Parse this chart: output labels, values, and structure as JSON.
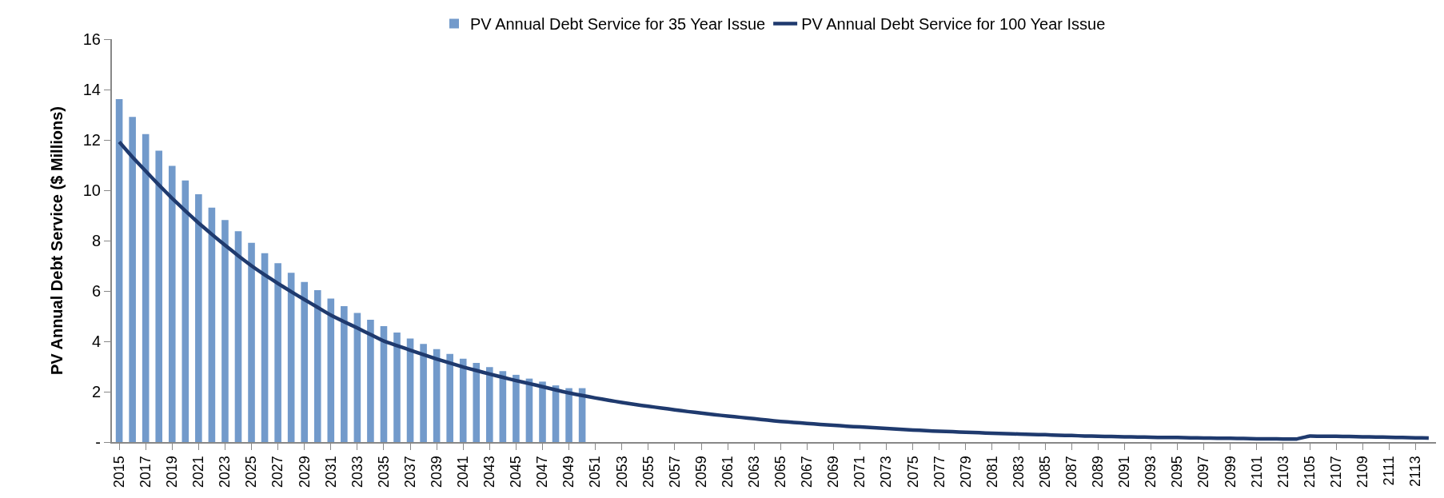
{
  "chart_data": {
    "type": "bar",
    "ylabel": "PV Annual Debt Service ($ Millions)",
    "categories": [
      "2015",
      null,
      "2017",
      null,
      "2019",
      null,
      "2021",
      null,
      "2023",
      null,
      "2025",
      null,
      "2027",
      null,
      "2029",
      null,
      "2031",
      null,
      "2033",
      null,
      "2035",
      null,
      "2037",
      null,
      "2039",
      null,
      "2041",
      null,
      "2043",
      null,
      "2045",
      null,
      "2047",
      null,
      "2049",
      null,
      "2051",
      null,
      "2053",
      null,
      "2055",
      null,
      "2057",
      null,
      "2059",
      null,
      "2061",
      null,
      "2063",
      null,
      "2065",
      null,
      "2067",
      null,
      "2069",
      null,
      "2071",
      null,
      "2073",
      null,
      "2075",
      null,
      "2077",
      null,
      "2079",
      null,
      "2081",
      null,
      "2083",
      null,
      "2085",
      null,
      "2087",
      null,
      "2089",
      null,
      "2091",
      null,
      "2093",
      null,
      "2095",
      null,
      "2097",
      null,
      "2099",
      null,
      "2101",
      null,
      "2103",
      null,
      "2105",
      null,
      "2107",
      null,
      "2109",
      null,
      "2111",
      null,
      "2113",
      null
    ],
    "series": [
      {
        "name": "PV Annual Debt Service for 35 Year Issue",
        "color": "#729acb",
        "values": [
          13.62,
          12.91,
          12.23,
          11.57,
          10.97,
          10.39,
          9.84,
          9.31,
          8.82,
          8.37,
          7.91,
          7.5,
          7.1,
          6.72,
          6.36,
          6.03,
          5.7,
          5.4,
          5.13,
          4.86,
          4.6,
          4.35,
          4.11,
          3.9,
          3.69,
          3.5,
          3.31,
          3.14,
          2.98,
          2.82,
          2.67,
          2.52,
          2.4,
          2.25,
          2.14,
          2.14,
          null,
          null,
          null,
          null,
          null,
          null,
          null,
          null,
          null,
          null,
          null,
          null,
          null,
          null,
          null,
          null,
          null,
          null,
          null,
          null,
          null,
          null,
          null,
          null,
          null,
          null,
          null,
          null,
          null,
          null,
          null,
          null,
          null,
          null,
          null,
          null,
          null,
          null,
          null,
          null,
          null,
          null,
          null,
          null,
          null,
          null,
          null,
          null,
          null,
          null,
          null,
          null,
          null,
          null,
          null,
          null,
          null,
          null,
          null,
          null,
          null,
          null,
          null,
          null
        ]
      },
      {
        "name": "PV Annual Debt Service for 100 Year Issue",
        "type": "line",
        "color": "#1f3a6e",
        "values": [
          11.92,
          11.32,
          10.76,
          10.21,
          9.68,
          9.18,
          8.7,
          8.25,
          7.82,
          7.4,
          7.0,
          6.64,
          6.3,
          5.97,
          5.66,
          5.35,
          5.04,
          4.78,
          4.53,
          4.27,
          4.01,
          3.83,
          3.65,
          3.47,
          3.3,
          3.14,
          2.98,
          2.84,
          2.7,
          2.57,
          2.44,
          2.32,
          2.2,
          2.07,
          1.95,
          1.85,
          1.75,
          1.66,
          1.57,
          1.49,
          1.42,
          1.35,
          1.28,
          1.21,
          1.15,
          1.09,
          1.03,
          0.98,
          0.93,
          0.87,
          0.82,
          0.78,
          0.74,
          0.7,
          0.67,
          0.63,
          0.6,
          0.57,
          0.54,
          0.51,
          0.48,
          0.45,
          0.43,
          0.41,
          0.39,
          0.37,
          0.35,
          0.33,
          0.32,
          0.3,
          0.29,
          0.27,
          0.26,
          0.24,
          0.23,
          0.22,
          0.21,
          0.2,
          0.19,
          0.18,
          0.18,
          0.17,
          0.16,
          0.15,
          0.15,
          0.14,
          0.13,
          0.13,
          0.12,
          0.12,
          0.24,
          0.23,
          0.23,
          0.22,
          0.21,
          0.2,
          0.19,
          0.18,
          0.17,
          0.16
        ]
      }
    ],
    "ylim": [
      0,
      16
    ],
    "yticks": [
      {
        "value": 0,
        "label": "-"
      },
      2,
      4,
      6,
      8,
      10,
      12,
      14,
      16
    ],
    "legend": "top",
    "marker": "none"
  }
}
